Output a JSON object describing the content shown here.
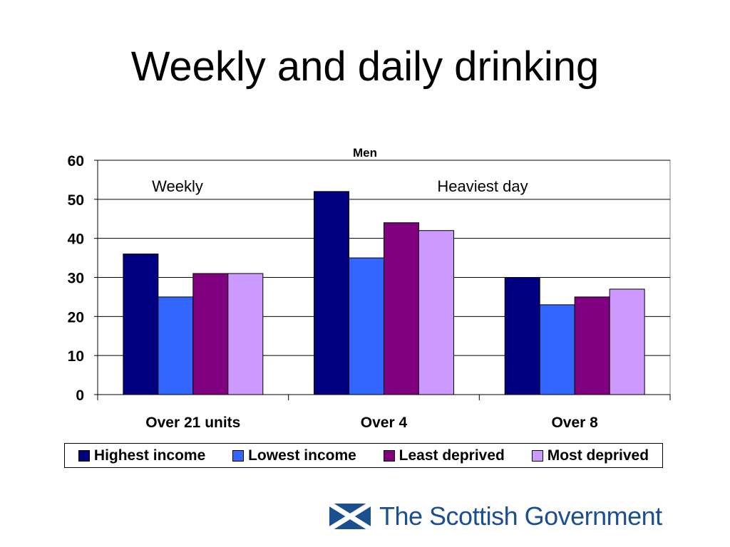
{
  "slide": {
    "title": "Weekly and daily drinking"
  },
  "chart_data": {
    "type": "bar",
    "title": "Men",
    "categories": [
      "Over 21 units",
      "Over 4",
      "Over 8"
    ],
    "series": [
      {
        "name": "Highest income",
        "color": "#000080",
        "values": [
          36,
          52,
          30
        ]
      },
      {
        "name": "Lowest income",
        "color": "#3366ff",
        "values": [
          25,
          35,
          23
        ]
      },
      {
        "name": "Least deprived",
        "color": "#800080",
        "values": [
          31,
          44,
          25
        ]
      },
      {
        "name": "Most deprived",
        "color": "#cc99ff",
        "values": [
          31,
          42,
          27
        ]
      }
    ],
    "ylim": [
      0,
      60
    ],
    "yticks": [
      0,
      10,
      20,
      30,
      40,
      50,
      60
    ],
    "grid": true,
    "annotations": [
      "Weekly",
      "Heaviest day"
    ],
    "legend_position": "bottom"
  },
  "logo": {
    "text": "The Scottish Government",
    "flag_blue": "#1b4f8f"
  }
}
